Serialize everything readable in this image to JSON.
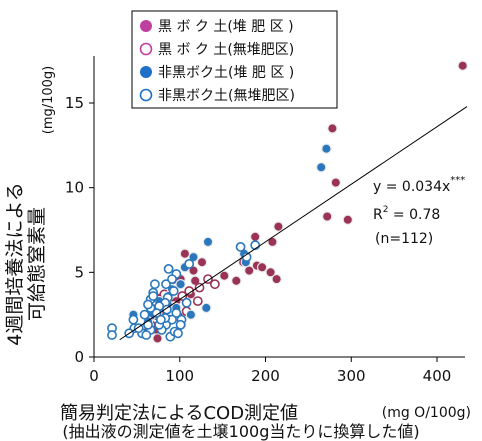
{
  "chart_data": {
    "type": "scatter",
    "title": "",
    "xlabel": "簡易判定法によるCOD測定値",
    "xlabel_unit": "(mg O/100g)",
    "xlabel_note": "(抽出液の測定値を土壌100g当たりに換算した値)",
    "ylabel_line1": "4週間培養法による",
    "ylabel_line2": "可給態窒素量",
    "ylabel_unit": "(mg/100g)",
    "xlim": [
      0,
      440
    ],
    "ylim": [
      0,
      18
    ],
    "xticks": [
      "0",
      "100",
      "200",
      "300",
      "400"
    ],
    "yticks": [
      "0",
      "5",
      "10",
      "15"
    ],
    "grid": false,
    "legend_position": "top-left",
    "legend": [
      "黒 ボ ク 土(堆 肥 区 )",
      "黒 ボ ク 土(無堆肥区)",
      "非黒ボク土(堆 肥 区 )",
      "非黒ボク土(無堆肥区)"
    ],
    "colors": {
      "kuroboku": "#9a3355",
      "kuroboku_legend": "#c040a0",
      "nonkuroboku": "#2a77bd",
      "nonkuroboku_legend": "#1e6fc8",
      "line": "#000000"
    },
    "regression": {
      "slope": 0.034,
      "equation_text": "y = 0.034x",
      "significance": "***",
      "r2_text": "R",
      "r2_value_text": " = 0.78",
      "n_text": "(n=112)"
    },
    "series": [
      {
        "name": "黒 ボ ク 土(堆 肥 区 )",
        "marker": "filled",
        "color_key": "kuroboku",
        "points": [
          [
            430,
            17.2
          ],
          [
            278,
            13.5
          ],
          [
            282,
            10.3
          ],
          [
            272,
            8.3
          ],
          [
            296,
            8.1
          ],
          [
            215,
            7.7
          ],
          [
            208,
            6.8
          ],
          [
            188,
            7.1
          ],
          [
            190,
            5.4
          ],
          [
            196,
            5.3
          ],
          [
            206,
            5.0
          ],
          [
            213,
            4.6
          ],
          [
            181,
            5.1
          ],
          [
            174,
            5.6
          ],
          [
            152,
            4.8
          ],
          [
            166,
            4.5
          ],
          [
            126,
            5.6
          ],
          [
            116,
            5.1
          ],
          [
            106,
            6.1
          ],
          [
            101,
            4.6
          ],
          [
            118,
            4.5
          ],
          [
            113,
            3.7
          ],
          [
            92,
            3.9
          ],
          [
            96,
            3.3
          ],
          [
            77,
            3.5
          ],
          [
            71,
            2.7
          ],
          [
            79,
            2.5
          ],
          [
            86,
            2.1
          ],
          [
            81,
            1.8
          ],
          [
            102,
            1.9
          ],
          [
            73,
            1.6
          ],
          [
            62,
            1.5
          ],
          [
            74,
            1.1
          ]
        ]
      },
      {
        "name": "黒 ボ ク 土(無堆肥区)",
        "marker": "open",
        "color_key": "kuroboku",
        "points": [
          [
            141,
            4.3
          ],
          [
            133,
            4.6
          ],
          [
            123,
            4.1
          ],
          [
            111,
            3.9
          ],
          [
            103,
            3.6
          ],
          [
            93,
            3.1
          ],
          [
            83,
            2.9
          ],
          [
            76,
            2.6
          ],
          [
            69,
            2.2
          ],
          [
            71,
            2.0
          ],
          [
            88,
            2.2
          ],
          [
            98,
            2.4
          ],
          [
            108,
            2.7
          ],
          [
            121,
            3.3
          ],
          [
            92,
            4.6
          ],
          [
            82,
            3.7
          ],
          [
            66,
            1.9
          ]
        ]
      },
      {
        "name": "非黒ボク土(堆 肥 区 )",
        "marker": "filled",
        "color_key": "nonkuroboku",
        "points": [
          [
            271,
            12.3
          ],
          [
            265,
            11.2
          ],
          [
            175,
            6.1
          ],
          [
            177,
            5.6
          ],
          [
            133,
            6.8
          ],
          [
            116,
            5.9
          ],
          [
            106,
            5.3
          ],
          [
            101,
            4.3
          ],
          [
            91,
            4.0
          ],
          [
            87,
            3.6
          ],
          [
            86,
            3.1
          ],
          [
            96,
            2.9
          ],
          [
            113,
            2.5
          ],
          [
            131,
            2.9
          ],
          [
            76,
            3.3
          ],
          [
            66,
            2.4
          ],
          [
            46,
            2.5
          ],
          [
            63,
            2.1
          ]
        ]
      },
      {
        "name": "非黒ボク土(無堆肥区)",
        "marker": "open",
        "color_key": "nonkuroboku",
        "points": [
          [
            188,
            6.6
          ],
          [
            171,
            6.5
          ],
          [
            178,
            5.9
          ],
          [
            111,
            5.5
          ],
          [
            87,
            5.2
          ],
          [
            96,
            4.9
          ],
          [
            91,
            4.6
          ],
          [
            84,
            4.3
          ],
          [
            93,
            3.9
          ],
          [
            86,
            3.5
          ],
          [
            83,
            3.2
          ],
          [
            76,
            3.0
          ],
          [
            66,
            3.4
          ],
          [
            69,
            3.8
          ],
          [
            71,
            4.3
          ],
          [
            96,
            2.6
          ],
          [
            91,
            2.2
          ],
          [
            84,
            1.9
          ],
          [
            79,
            1.6
          ],
          [
            66,
            1.6
          ],
          [
            63,
            1.9
          ],
          [
            46,
            2.2
          ],
          [
            47,
            1.7
          ],
          [
            21,
            1.7
          ],
          [
            21,
            1.3
          ],
          [
            89,
            1.2
          ],
          [
            41,
            1.4
          ],
          [
            56,
            1.4
          ],
          [
            73,
            2.6
          ],
          [
            102,
            2.2
          ],
          [
            108,
            3.2
          ],
          [
            66,
            2.9
          ],
          [
            59,
            2.5
          ],
          [
            52,
            1.7
          ],
          [
            63,
            3.1
          ],
          [
            94,
            1.5
          ],
          [
            98,
            1.4
          ],
          [
            61,
            1.3
          ],
          [
            76,
            1.9
          ],
          [
            83,
            2.3
          ],
          [
            69,
            3.6
          ],
          [
            85,
            2.8
          ],
          [
            78,
            2.2
          ],
          [
            101,
            1.9
          ]
        ]
      }
    ]
  }
}
